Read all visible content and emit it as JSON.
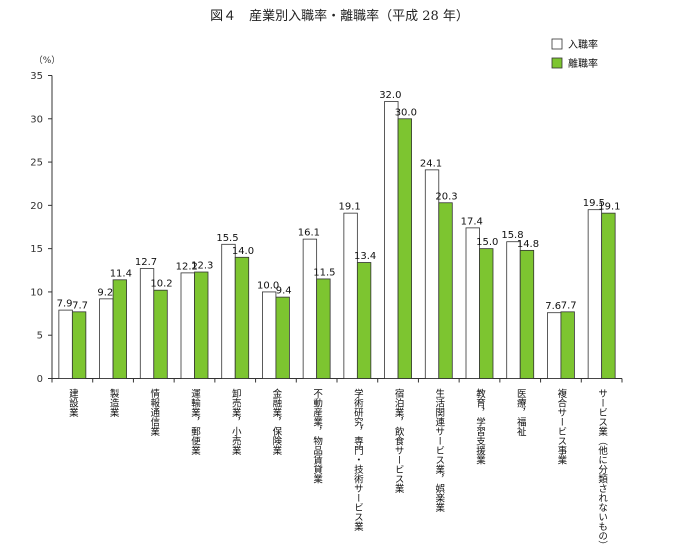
{
  "chart_data": {
    "type": "bar",
    "title": "図４　産業別入職率・離職率（平成 28 年）",
    "ylabel": "（%）",
    "ylim": [
      0,
      35
    ],
    "yticks": [
      0,
      5,
      10,
      15,
      20,
      25,
      30,
      35
    ],
    "grid": false,
    "legend_position": "top-right",
    "categories": [
      "建設業",
      "製造業",
      "情報通信業",
      "運輸業，郵便業",
      "卸売業，小売業",
      "金融業，保険業",
      "不動産業，物品賃貸業",
      "学術研究，専門・技術サービス業",
      "宿泊業，飲食サービス業",
      "生活関連サービス業，娯楽業",
      "教育，学習支援業",
      "医療，福祉",
      "複合サービス事業",
      "サービス業（他に分類されないもの）"
    ],
    "series": [
      {
        "name": "入職率",
        "color": "#ffffff",
        "values": [
          7.9,
          9.2,
          12.7,
          12.2,
          15.5,
          10.0,
          16.1,
          19.1,
          32.0,
          24.1,
          17.4,
          15.8,
          7.6,
          19.5
        ],
        "labels": [
          "7.9",
          "9.2",
          "12.7",
          "12.2",
          "15.5",
          "10.0",
          "16.1",
          "19.1",
          "32.0",
          "24.1",
          "17.4",
          "15.8",
          "7.6",
          "19.5"
        ]
      },
      {
        "name": "離職率",
        "color": "#7dc530",
        "values": [
          7.7,
          11.4,
          10.2,
          12.3,
          14.0,
          9.4,
          11.5,
          13.4,
          30.0,
          20.3,
          15.0,
          14.8,
          7.7,
          19.1
        ],
        "labels": [
          "7.7",
          "11.4",
          "10.2",
          "12.3",
          "14.0",
          "9.4",
          "11.5",
          "13.4",
          "30.0",
          "20.3",
          "15.0",
          "14.8",
          "7.7",
          "19.1"
        ]
      }
    ]
  }
}
